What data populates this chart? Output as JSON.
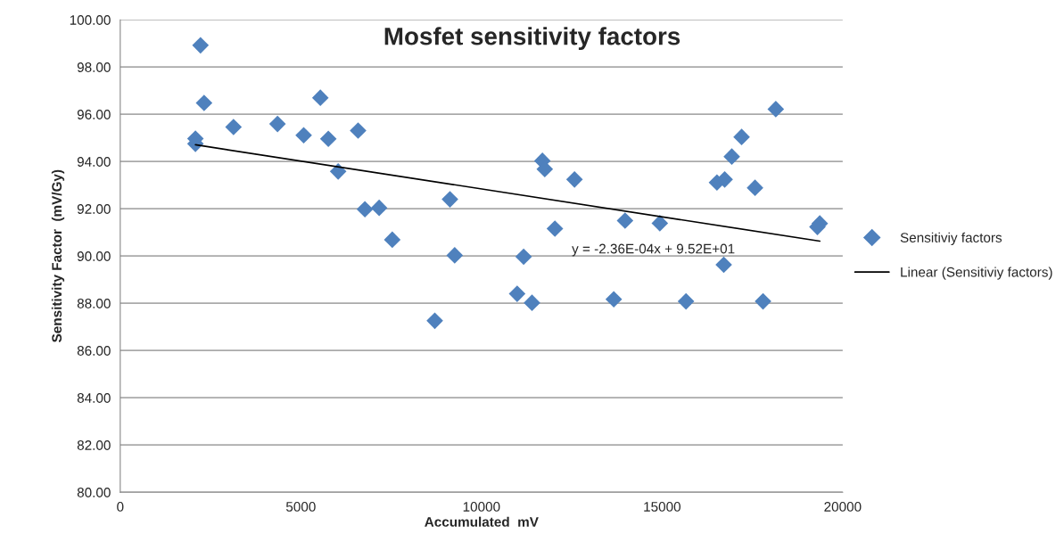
{
  "chart_data": {
    "type": "scatter",
    "title": "Mosfet sensitivity factors",
    "xlabel": "Accumulated  mV",
    "ylabel": "Sensitivity Factor  (mV/Gy)",
    "series": [
      {
        "name": "Sensitiviy factors",
        "color": "#4f81bd",
        "marker": "diamond",
        "x": [
          2222,
          2321,
          2082,
          2082,
          3136,
          4354,
          5079,
          5540,
          5761,
          6585,
          6033,
          6773,
          7168,
          7531,
          9128,
          9259,
          8708,
          11687,
          11753,
          12576,
          12033,
          11168,
          10988,
          11399,
          13975,
          14938,
          13663,
          15662,
          16519,
          16733,
          16930,
          17202,
          18148,
          17573,
          16708,
          17795,
          19366,
          19300
        ],
        "values": [
          98.92,
          96.48,
          94.97,
          94.75,
          95.46,
          95.59,
          95.11,
          96.7,
          94.96,
          95.31,
          93.58,
          91.98,
          92.04,
          90.69,
          92.4,
          90.03,
          87.26,
          94.03,
          93.68,
          93.24,
          91.16,
          89.97,
          88.4,
          88.02,
          91.5,
          91.39,
          88.17,
          88.08,
          93.11,
          93.24,
          94.21,
          95.04,
          96.22,
          92.89,
          89.63,
          88.08,
          91.38,
          91.23
        ]
      },
      {
        "name": "Linear (Sensitiviy factors)",
        "type": "line",
        "color": "#000000",
        "marker": "none",
        "line_style": "solid",
        "x": [
          2082,
          19366
        ],
        "values": [
          94.71,
          90.63
        ]
      }
    ],
    "annotations": [
      "y = -2.36E-04x + 9.52E+01"
    ],
    "xlim": [
      0,
      20000
    ],
    "xticks": [
      0,
      5000,
      10000,
      15000,
      20000
    ],
    "ylim": [
      80,
      100
    ],
    "yticks": [
      {
        "value": 80,
        "label": "80.00"
      },
      {
        "value": 82,
        "label": "82.00"
      },
      {
        "value": 84,
        "label": "84.00"
      },
      {
        "value": 86,
        "label": "86.00"
      },
      {
        "value": 88,
        "label": "88.00"
      },
      {
        "value": 90,
        "label": "90.00"
      },
      {
        "value": 92,
        "label": "92.00"
      },
      {
        "value": 94,
        "label": "94.00"
      },
      {
        "value": 96,
        "label": "96.00"
      },
      {
        "value": 98,
        "label": "98.00"
      },
      {
        "value": 100,
        "label": "100.00"
      }
    ],
    "grid": "y",
    "legend": "right"
  }
}
